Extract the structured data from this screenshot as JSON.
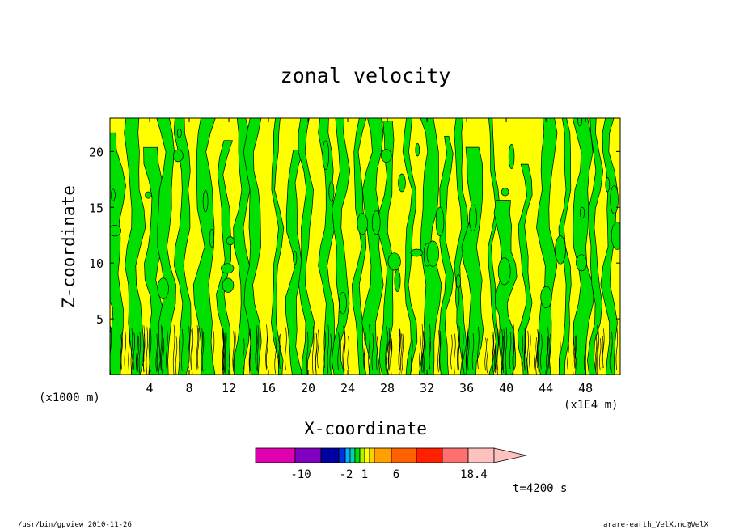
{
  "chart_data": {
    "type": "heatmap",
    "title": "zonal velocity",
    "xlabel": "X-coordinate",
    "ylabel": "Z-coordinate",
    "x_unit_left": "(x1000 m)",
    "x_unit_right": "(x1E4 m)",
    "xlim": [
      0,
      51.5
    ],
    "ylim": [
      0,
      23
    ],
    "x_ticks": [
      "4",
      "8",
      "12",
      "16",
      "20",
      "24",
      "28",
      "32",
      "36",
      "40",
      "44",
      "48"
    ],
    "y_ticks": [
      "5",
      "10",
      "15",
      "20"
    ],
    "field": {
      "description": "vertical columns of alternating sign; positive (yellow) and negative (green) bands, with dense small-scale contours below z≈4",
      "dominant_range": [
        -2,
        1
      ]
    },
    "colorbar": {
      "labels": [
        "-10",
        "-2",
        "1",
        "6",
        "18.4"
      ],
      "colors": [
        "#e000b0",
        "#8000c0",
        "#0000a0",
        "#0030e0",
        "#00b0ff",
        "#00d0b0",
        "#00e000",
        "#b0f000",
        "#ffff00",
        "#ffd000",
        "#ffa000",
        "#ff6000",
        "#ff2000",
        "#ff7070",
        "#ffc0c0"
      ]
    },
    "time_label": "t=4200 s"
  },
  "footer": {
    "left": "/usr/bin/gpview  2010-11-26",
    "right": "arare-earth_VelX.nc@VelX"
  },
  "colors": {
    "positive": "#ffff00",
    "negative": "#00e000"
  }
}
